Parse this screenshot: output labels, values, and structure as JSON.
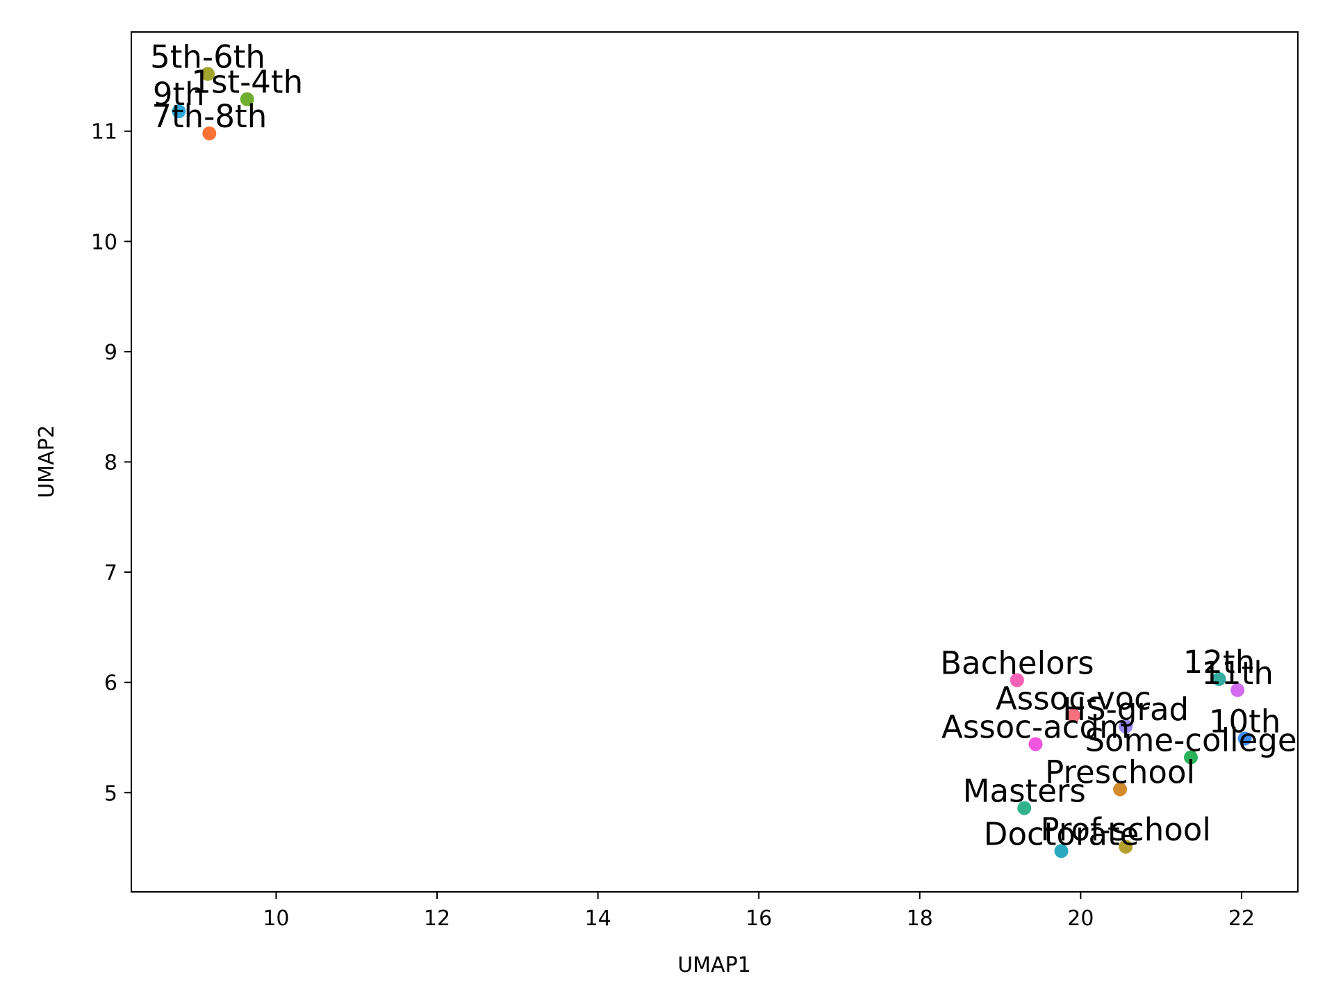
{
  "chart_data": {
    "type": "scatter",
    "title": "",
    "xlabel": "UMAP1",
    "ylabel": "UMAP2",
    "xlim": [
      8.2,
      22.7
    ],
    "ylim": [
      4.1,
      11.9
    ],
    "xticks": [
      10,
      12,
      14,
      16,
      18,
      20,
      22
    ],
    "yticks": [
      5,
      6,
      7,
      8,
      9,
      10,
      11
    ],
    "grid": false,
    "legend": "none",
    "points": [
      {
        "label": "5th-6th",
        "x": 9.15,
        "y": 11.52,
        "color": "#a0a32c"
      },
      {
        "label": "1st-4th",
        "x": 9.64,
        "y": 11.29,
        "color": "#6fae2f"
      },
      {
        "label": "9th",
        "x": 8.79,
        "y": 11.18,
        "color": "#2ea7d9"
      },
      {
        "label": "7th-8th",
        "x": 9.17,
        "y": 10.98,
        "color": "#f77234"
      },
      {
        "label": "Bachelors",
        "x": 19.21,
        "y": 6.02,
        "color": "#f561b6"
      },
      {
        "label": "12th",
        "x": 21.72,
        "y": 6.03,
        "color": "#35aca0"
      },
      {
        "label": "11th",
        "x": 21.95,
        "y": 5.93,
        "color": "#d46cf0"
      },
      {
        "label": "Assoc-voc",
        "x": 19.91,
        "y": 5.7,
        "color": "#f6707e"
      },
      {
        "label": "HS-grad",
        "x": 20.56,
        "y": 5.6,
        "color": "#9a8bf5"
      },
      {
        "label": "10th",
        "x": 22.04,
        "y": 5.49,
        "color": "#3d8df5"
      },
      {
        "label": "Assoc-acdm",
        "x": 19.44,
        "y": 5.44,
        "color": "#f056e0"
      },
      {
        "label": "Some-college",
        "x": 21.37,
        "y": 5.32,
        "color": "#2bb25a"
      },
      {
        "label": "Preschool",
        "x": 20.49,
        "y": 5.03,
        "color": "#d38c2c"
      },
      {
        "label": "Masters",
        "x": 19.3,
        "y": 4.86,
        "color": "#31b28b"
      },
      {
        "label": "Prof-school",
        "x": 20.56,
        "y": 4.51,
        "color": "#b5a02d"
      },
      {
        "label": "Doctorate",
        "x": 19.76,
        "y": 4.47,
        "color": "#2aa8bf"
      }
    ]
  }
}
